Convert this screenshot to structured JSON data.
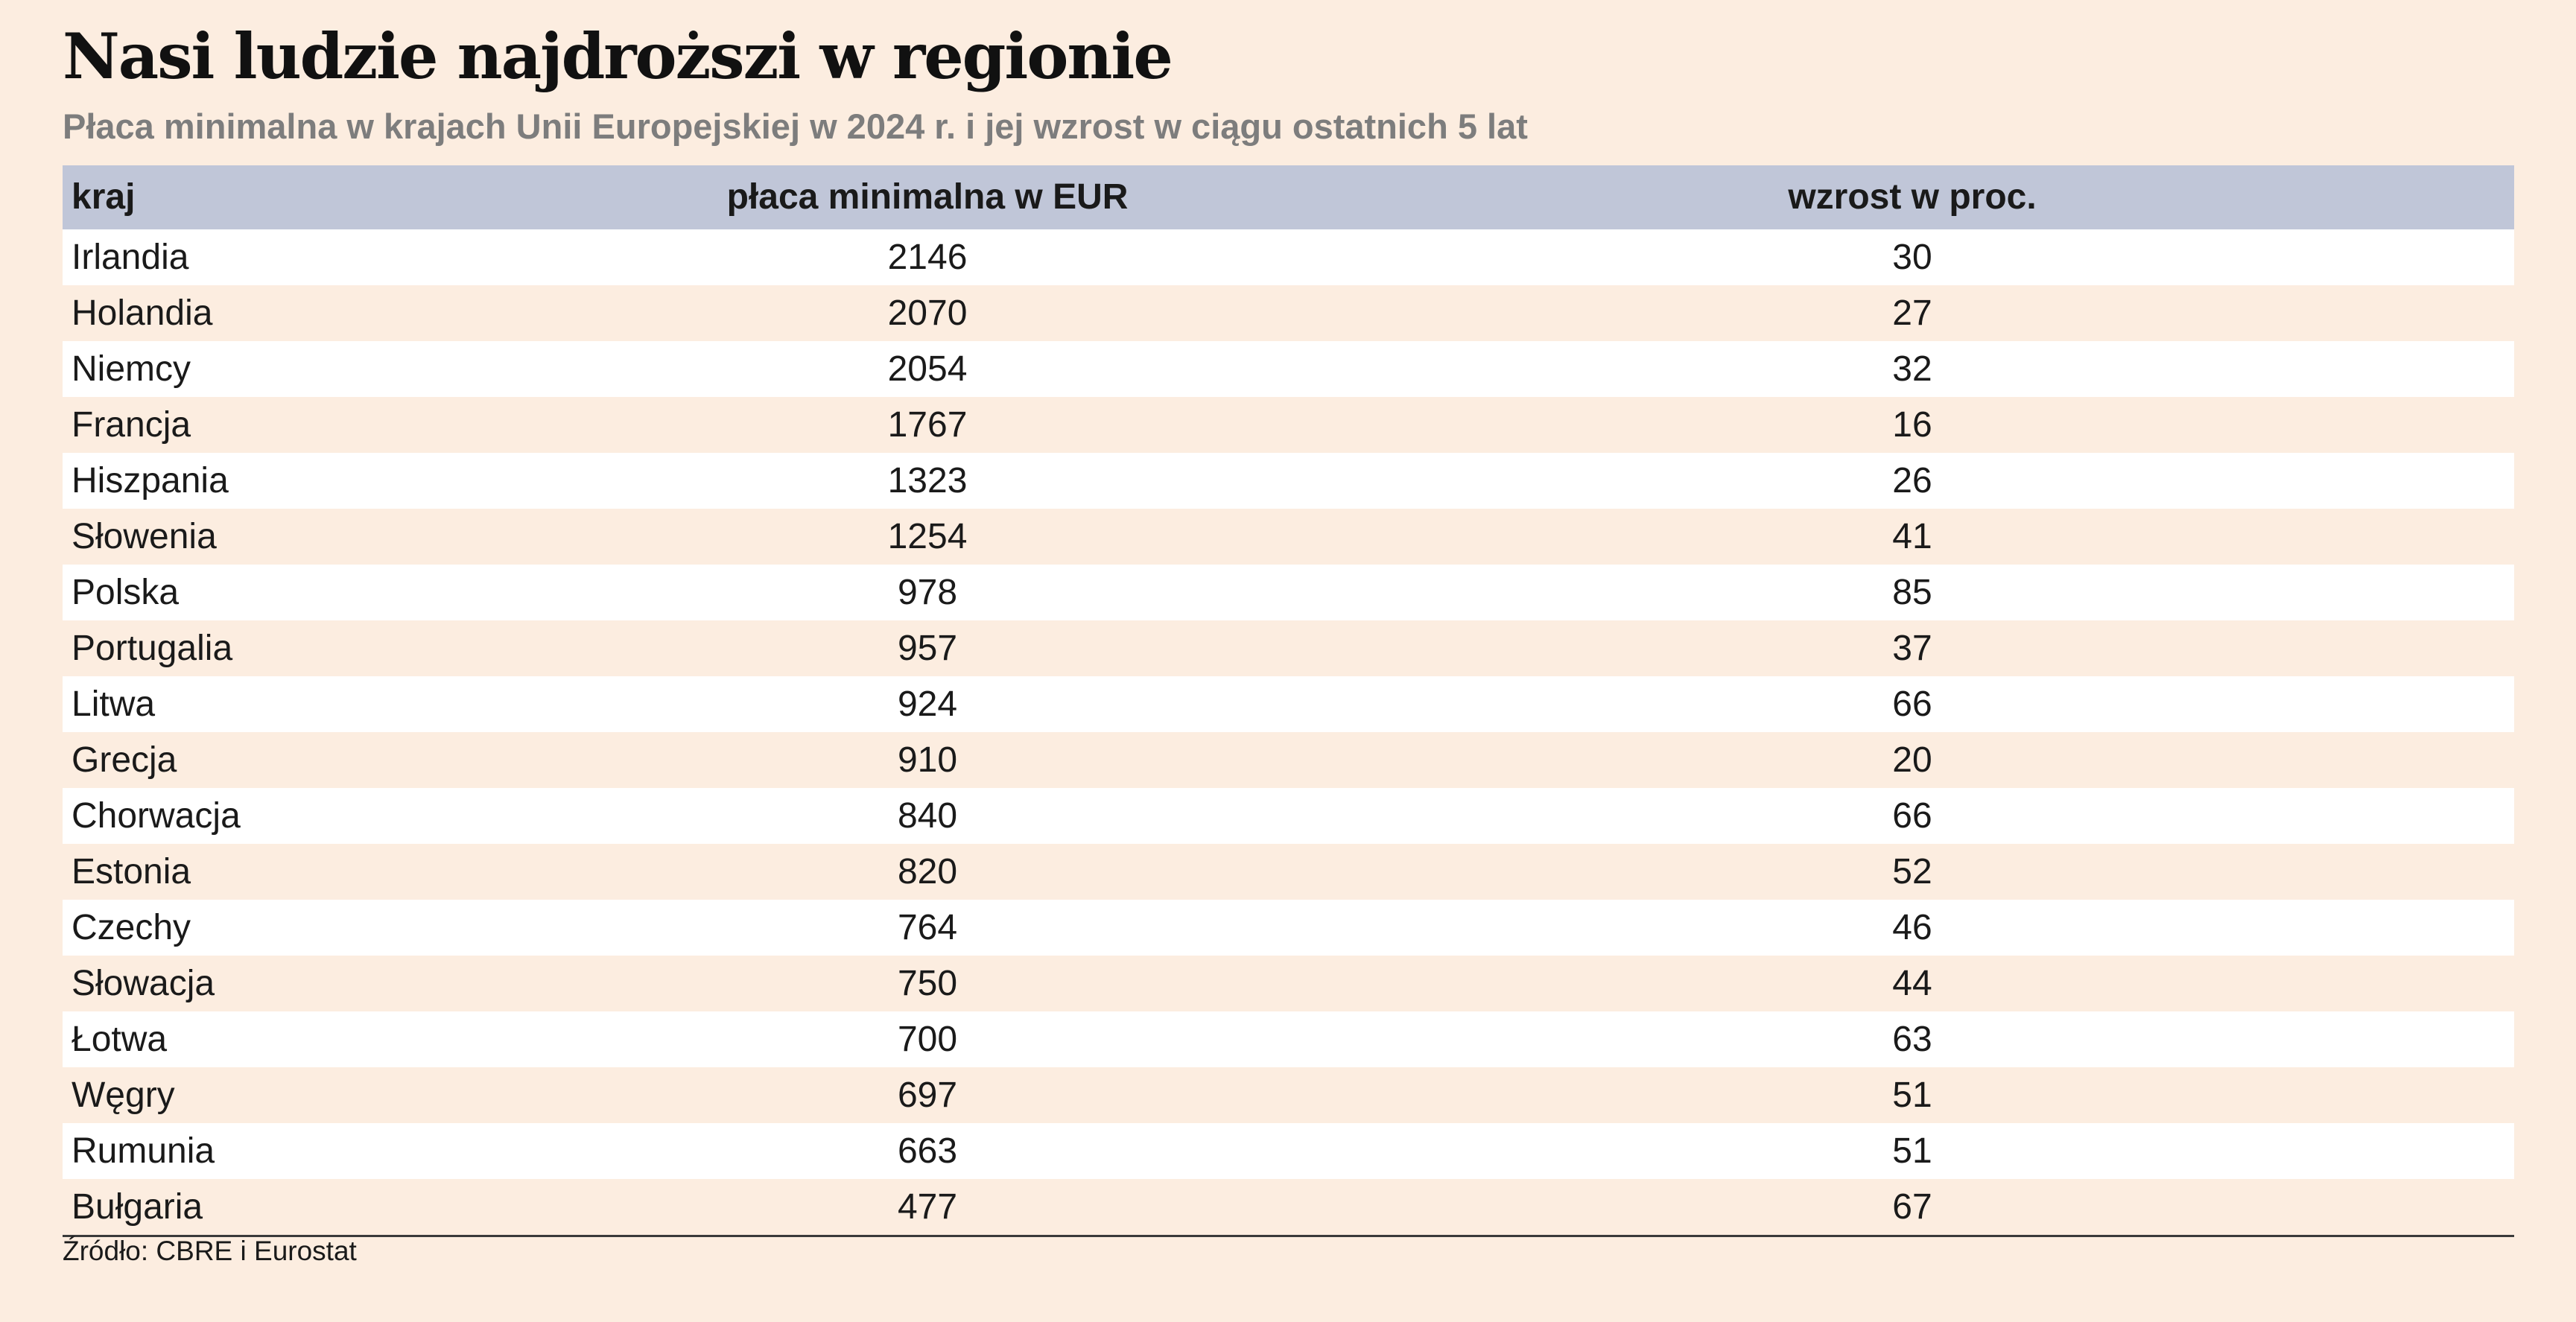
{
  "title": "Nasi ludzie najdroższi w regionie",
  "subtitle": "Płaca minimalna w krajach Unii Europejskiej w 2024 r. i jej wzrost w ciągu ostatnich 5 lat",
  "source": "Źródło: CBRE i Eurostat",
  "colors": {
    "background": "#fcede0",
    "header_background": "#c0c6d8",
    "stripe": "#ffffff",
    "subtitle_text": "#7d7d7d"
  },
  "chart_data": {
    "type": "table",
    "title": "Nasi ludzie najdroższi w regionie",
    "subtitle": "Płaca minimalna w krajach Unii Europejskiej w 2024 r. i jej wzrost w ciągu ostatnich 5 lat",
    "columns": [
      "kraj",
      "płaca minimalna w EUR",
      "wzrost w proc."
    ],
    "rows": [
      [
        "Irlandia",
        "2146",
        "30"
      ],
      [
        "Holandia",
        "2070",
        "27"
      ],
      [
        "Niemcy",
        "2054",
        "32"
      ],
      [
        "Francja",
        "1767",
        "16"
      ],
      [
        "Hiszpania",
        "1323",
        "26"
      ],
      [
        "Słowenia",
        "1254",
        "41"
      ],
      [
        "Polska",
        "978",
        "85"
      ],
      [
        "Portugalia",
        "957",
        "37"
      ],
      [
        "Litwa",
        "924",
        "66"
      ],
      [
        "Grecja",
        "910",
        "20"
      ],
      [
        "Chorwacja",
        "840",
        "66"
      ],
      [
        "Estonia",
        "820",
        "52"
      ],
      [
        "Czechy",
        "764",
        "46"
      ],
      [
        "Słowacja",
        "750",
        "44"
      ],
      [
        "Łotwa",
        "700",
        "63"
      ],
      [
        "Węgry",
        "697",
        "51"
      ],
      [
        "Rumunia",
        "663",
        "51"
      ],
      [
        "Bułgaria",
        "477",
        "67"
      ]
    ],
    "source": "Źródło: CBRE i Eurostat"
  }
}
